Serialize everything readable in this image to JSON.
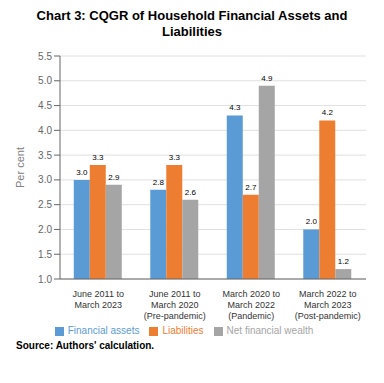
{
  "chart_data": {
    "type": "bar",
    "title": "Chart 3: CQGR of Household Financial Assets and\nLiabilities",
    "categories": [
      "June 2011 to\nMarch 2023",
      "June 2011 to\nMarch 2020\n(Pre-pandemic)",
      "March 2020 to\nMarch 2022\n(Pandemic)",
      "March 2022 to\nMarch 2023\n(Post-pandemic)"
    ],
    "series": [
      {
        "name": "Financial assets",
        "color": "#5B9BD5",
        "values": [
          3.0,
          2.8,
          4.3,
          2.0
        ],
        "value_labels": [
          "3.0",
          "2.8",
          "4.3",
          "2.0"
        ]
      },
      {
        "name": "Liabilities",
        "color": "#ED7D31",
        "values": [
          3.3,
          3.3,
          2.7,
          4.2
        ],
        "value_labels": [
          "3.3",
          "3.3",
          "2.7",
          "4.2"
        ]
      },
      {
        "name": "Net financial wealth",
        "color": "#A5A5A5",
        "values": [
          2.9,
          2.6,
          4.9,
          1.2
        ],
        "value_labels": [
          "2.9",
          "2.6",
          "4.9",
          "1.2"
        ]
      }
    ],
    "ylabel": "Per cent",
    "ylim": [
      1.0,
      5.5
    ],
    "yticks": [
      {
        "value": 1.0,
        "label": "1.0"
      },
      1.5,
      {
        "value": 2.0,
        "label": "2.0"
      },
      2.5,
      {
        "value": 3.0,
        "label": "3.0"
      },
      3.5,
      {
        "value": 4.0,
        "label": "4.0"
      },
      4.5,
      {
        "value": 5.0,
        "label": "5.0"
      },
      5.5
    ],
    "grid": true,
    "legend": "bottom",
    "data_labels": true,
    "annotations": [
      "Source: Authors' calculation."
    ]
  }
}
